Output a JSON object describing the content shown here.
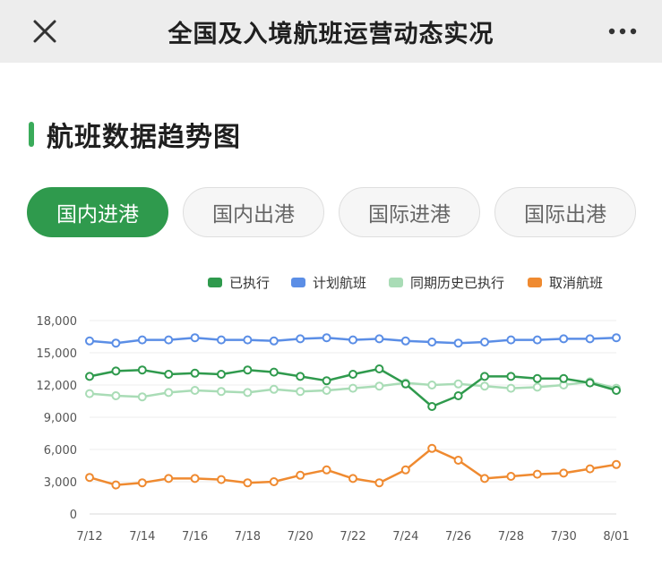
{
  "header": {
    "title": "全国及入境航班运营动态实况"
  },
  "section": {
    "title": "航班数据趋势图"
  },
  "tabs": [
    {
      "label": "国内进港",
      "active": true
    },
    {
      "label": "国内出港",
      "active": false
    },
    {
      "label": "国际进港",
      "active": false
    },
    {
      "label": "国际出港",
      "active": false
    }
  ],
  "colors": {
    "accent": "#2f9a4d"
  },
  "chart_data": {
    "type": "line",
    "x": [
      "7/12",
      "7/13",
      "7/14",
      "7/15",
      "7/16",
      "7/17",
      "7/18",
      "7/19",
      "7/20",
      "7/21",
      "7/22",
      "7/23",
      "7/24",
      "7/25",
      "7/26",
      "7/27",
      "7/28",
      "7/29",
      "7/30",
      "7/31",
      "8/01"
    ],
    "x_tick_labels": [
      "7/12",
      "7/14",
      "7/16",
      "7/18",
      "7/20",
      "7/22",
      "7/24",
      "7/26",
      "7/28",
      "7/30",
      "8/01"
    ],
    "ylim": [
      0,
      18000
    ],
    "y_ticks": [
      "0",
      "3,000",
      "6,000",
      "9,000",
      "12,000",
      "15,000",
      "18,000"
    ],
    "grid": true,
    "legend_position": "top-right",
    "series": [
      {
        "name": "已执行",
        "color": "#2f9a4d",
        "values": [
          12800,
          13300,
          13400,
          13000,
          13100,
          13000,
          13400,
          13200,
          12800,
          12400,
          13000,
          13500,
          12100,
          10000,
          11000,
          12800,
          12800,
          12600,
          12600,
          12200,
          11500
        ]
      },
      {
        "name": "计划航班",
        "color": "#5b8ee6",
        "values": [
          16100,
          15900,
          16200,
          16200,
          16400,
          16200,
          16200,
          16100,
          16300,
          16400,
          16200,
          16300,
          16100,
          16000,
          15900,
          16000,
          16200,
          16200,
          16300,
          16300,
          16400
        ]
      },
      {
        "name": "同期历史已执行",
        "color": "#a9dcb6",
        "values": [
          11200,
          11000,
          10900,
          11300,
          11500,
          11400,
          11300,
          11600,
          11400,
          11500,
          11700,
          11900,
          12200,
          12000,
          12100,
          11900,
          11700,
          11800,
          12000,
          12300,
          11700
        ]
      },
      {
        "name": "取消航班",
        "color": "#ef8a30",
        "values": [
          3400,
          2700,
          2900,
          3300,
          3300,
          3200,
          2900,
          3000,
          3600,
          4100,
          3300,
          2900,
          4100,
          6100,
          5000,
          3300,
          3500,
          3700,
          3800,
          4200,
          4600
        ]
      }
    ]
  }
}
